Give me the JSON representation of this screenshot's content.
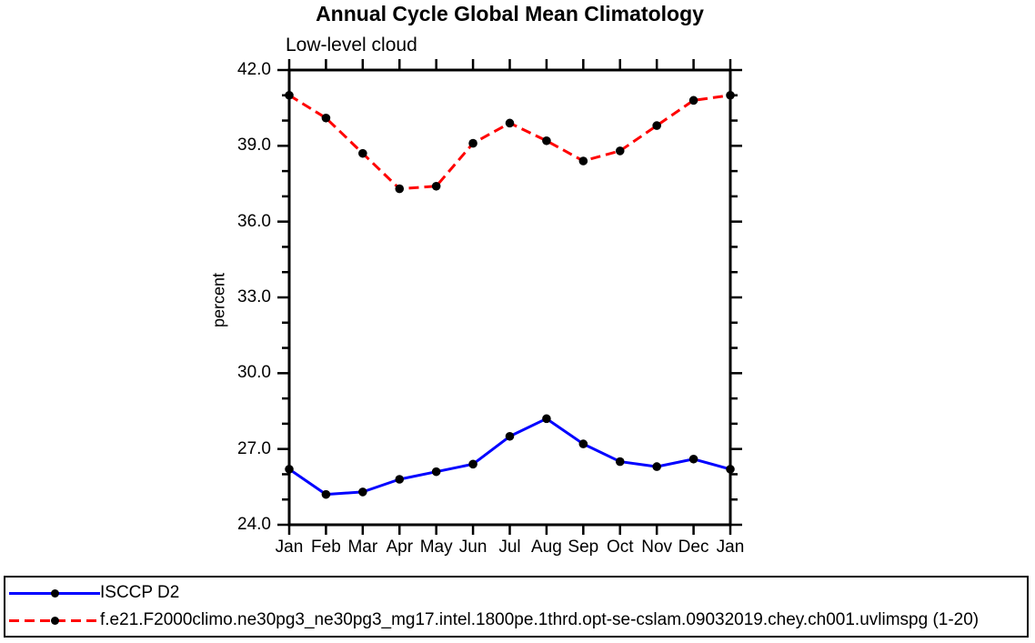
{
  "chart_data": {
    "type": "line",
    "title": "Annual Cycle Global Mean Climatology",
    "subtitle": "Low-level cloud",
    "ylabel": "percent",
    "x_categories": [
      "Jan",
      "Feb",
      "Mar",
      "Apr",
      "May",
      "Jun",
      "Jul",
      "Aug",
      "Sep",
      "Oct",
      "Nov",
      "Dec",
      "Jan"
    ],
    "ylim": [
      24.0,
      42.0
    ],
    "ytick_values": [
      24,
      27,
      30,
      33,
      36,
      39,
      42
    ],
    "ytick_labels": [
      "24.0",
      "27.0",
      "30.0",
      "33.0",
      "36.0",
      "39.0",
      "42.0"
    ],
    "y_minor_step": 1.0,
    "grid": false,
    "legend_position": "bottom-left-box",
    "marker": "filled-circle",
    "marker_color": "#000000",
    "series": [
      {
        "name": "ISCCP D2",
        "color": "#0000ff",
        "line_style": "solid",
        "marker_color": "#000000",
        "values": [
          26.2,
          25.2,
          25.3,
          25.8,
          26.1,
          26.4,
          27.5,
          28.2,
          27.2,
          26.5,
          26.3,
          26.6,
          26.2
        ]
      },
      {
        "name": "f.e21.F2000climo.ne30pg3_ne30pg3_mg17.intel.1800pe.1thrd.opt-se-cslam.09032019.chey.ch001.uvlimspg (1-20)",
        "color": "#ff0000",
        "line_style": "dashed",
        "marker_color": "#000000",
        "values": [
          41.0,
          40.1,
          38.7,
          37.3,
          37.4,
          39.1,
          39.9,
          39.2,
          38.4,
          38.8,
          39.8,
          40.8,
          41.0
        ]
      }
    ]
  },
  "colors": {
    "axis": "#000000",
    "text": "#000000",
    "background": "#ffffff"
  }
}
